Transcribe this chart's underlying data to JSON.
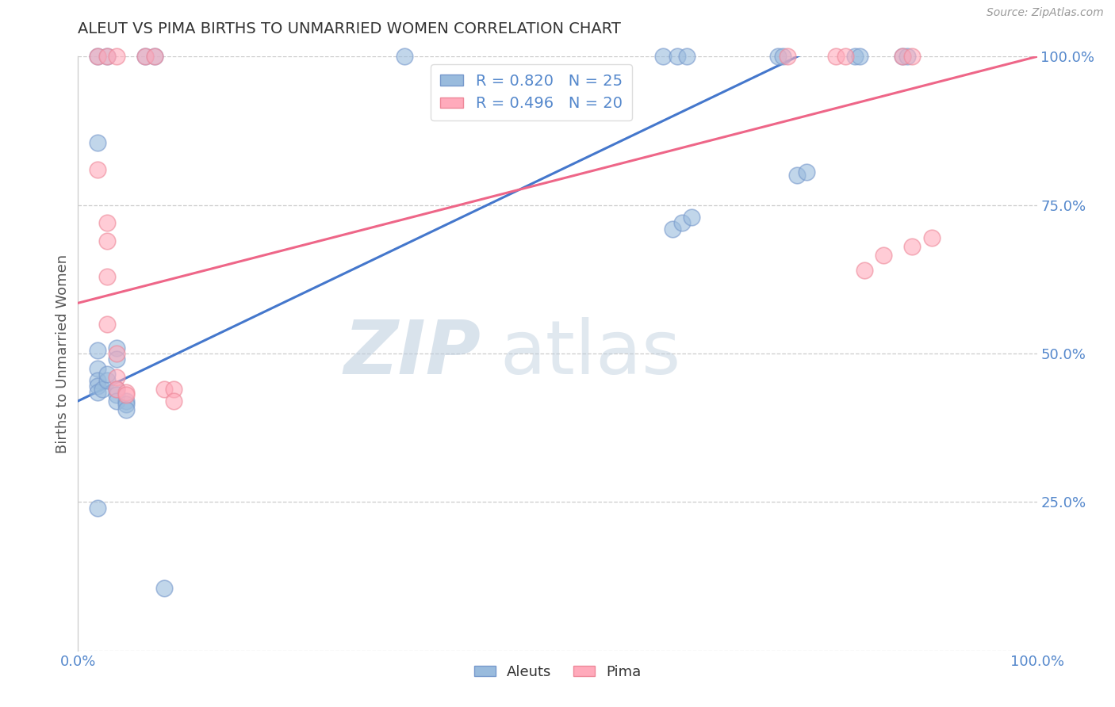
{
  "title": "ALEUT VS PIMA BIRTHS TO UNMARRIED WOMEN CORRELATION CHART",
  "source_text": "Source: ZipAtlas.com",
  "ylabel": "Births to Unmarried Women",
  "xlim": [
    0,
    1
  ],
  "ylim": [
    0,
    1
  ],
  "xticks": [
    0,
    0.25,
    0.5,
    0.75,
    1.0
  ],
  "xticklabels": [
    "0.0%",
    "",
    "",
    "",
    "100.0%"
  ],
  "yticks": [
    0.0,
    0.25,
    0.5,
    0.75,
    1.0
  ],
  "right_yticklabels": [
    "",
    "25.0%",
    "50.0%",
    "75.0%",
    "100.0%"
  ],
  "aleut_color": "#99bbdd",
  "aleut_edge_color": "#7799cc",
  "pima_color": "#ffaabb",
  "pima_edge_color": "#ee8899",
  "aleut_R": "0.820",
  "aleut_N": "25",
  "pima_R": "0.496",
  "pima_N": "20",
  "aleut_line_color": "#4477cc",
  "pima_line_color": "#ee6688",
  "aleut_line_x": [
    0.0,
    0.75
  ],
  "aleut_line_y": [
    0.42,
    1.0
  ],
  "pima_line_x": [
    0.0,
    1.0
  ],
  "pima_line_y": [
    0.585,
    1.0
  ],
  "watermark_zip": "ZIP",
  "watermark_atlas": "atlas",
  "watermark_color": "#c5d8ee",
  "background_color": "#ffffff",
  "grid_color": "#cccccc",
  "title_color": "#333333",
  "axis_label_color": "#555555",
  "tick_label_color": "#5588cc",
  "legend_text_color": "#5588cc",
  "aleut_scatter": [
    [
      0.02,
      0.855
    ],
    [
      0.02,
      0.505
    ],
    [
      0.02,
      0.475
    ],
    [
      0.02,
      0.455
    ],
    [
      0.02,
      0.445
    ],
    [
      0.02,
      0.435
    ],
    [
      0.025,
      0.44
    ],
    [
      0.03,
      0.455
    ],
    [
      0.03,
      0.465
    ],
    [
      0.04,
      0.51
    ],
    [
      0.04,
      0.49
    ],
    [
      0.04,
      0.44
    ],
    [
      0.04,
      0.43
    ],
    [
      0.04,
      0.42
    ],
    [
      0.05,
      0.42
    ],
    [
      0.05,
      0.415
    ],
    [
      0.05,
      0.405
    ],
    [
      0.02,
      0.24
    ],
    [
      0.09,
      0.105
    ],
    [
      0.62,
      0.71
    ],
    [
      0.63,
      0.72
    ],
    [
      0.64,
      0.73
    ],
    [
      0.75,
      0.8
    ],
    [
      0.76,
      0.805
    ]
  ],
  "pima_scatter": [
    [
      0.02,
      0.81
    ],
    [
      0.03,
      0.72
    ],
    [
      0.03,
      0.69
    ],
    [
      0.03,
      0.63
    ],
    [
      0.03,
      0.55
    ],
    [
      0.04,
      0.5
    ],
    [
      0.04,
      0.46
    ],
    [
      0.04,
      0.44
    ],
    [
      0.05,
      0.435
    ],
    [
      0.05,
      0.43
    ],
    [
      0.09,
      0.44
    ],
    [
      0.1,
      0.44
    ],
    [
      0.1,
      0.42
    ],
    [
      0.82,
      0.64
    ],
    [
      0.84,
      0.665
    ],
    [
      0.87,
      0.68
    ],
    [
      0.89,
      0.695
    ]
  ],
  "aleut_top_scatter": [
    [
      0.02,
      1.0
    ],
    [
      0.03,
      1.0
    ],
    [
      0.07,
      1.0
    ],
    [
      0.08,
      1.0
    ],
    [
      0.34,
      1.0
    ],
    [
      0.61,
      1.0
    ],
    [
      0.625,
      1.0
    ],
    [
      0.635,
      1.0
    ],
    [
      0.73,
      1.0
    ],
    [
      0.735,
      1.0
    ],
    [
      0.81,
      1.0
    ],
    [
      0.815,
      1.0
    ],
    [
      0.86,
      1.0
    ],
    [
      0.865,
      1.0
    ]
  ],
  "pima_top_scatter": [
    [
      0.02,
      1.0
    ],
    [
      0.03,
      1.0
    ],
    [
      0.04,
      1.0
    ],
    [
      0.07,
      1.0
    ],
    [
      0.08,
      1.0
    ],
    [
      0.74,
      1.0
    ],
    [
      0.79,
      1.0
    ],
    [
      0.8,
      1.0
    ],
    [
      0.86,
      1.0
    ],
    [
      0.87,
      1.0
    ]
  ],
  "figsize": [
    14.06,
    8.92
  ],
  "dpi": 100
}
